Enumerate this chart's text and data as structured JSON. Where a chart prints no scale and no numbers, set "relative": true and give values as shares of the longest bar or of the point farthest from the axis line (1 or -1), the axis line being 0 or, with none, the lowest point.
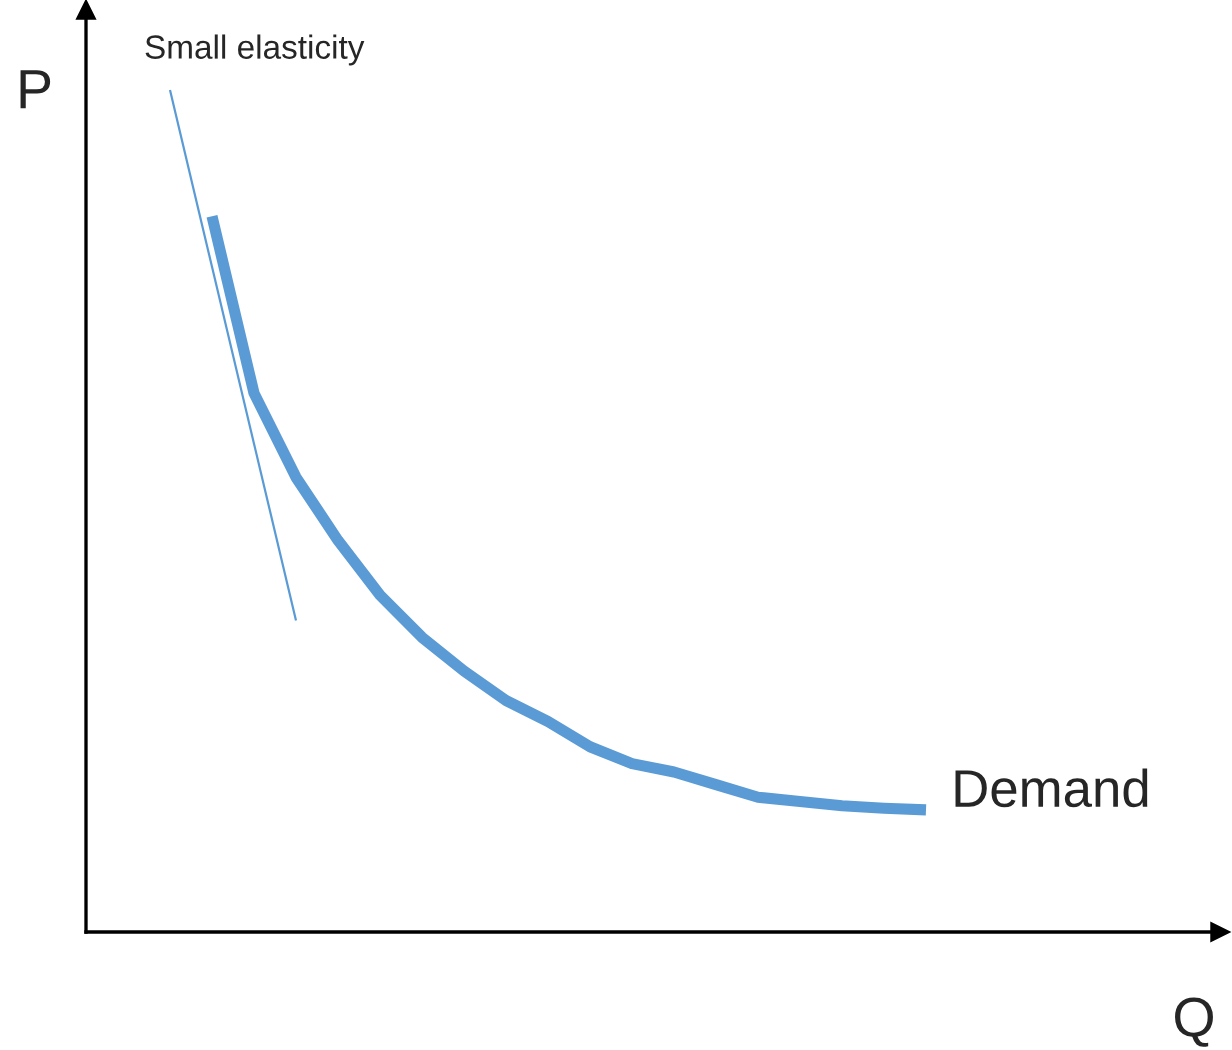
{
  "chart_data": {
    "type": "line",
    "relative": true,
    "xlabel": "Q",
    "ylabel": "P",
    "categories": [
      null,
      null,
      null,
      null,
      null,
      null,
      null,
      null,
      null,
      null,
      null,
      null,
      null,
      null,
      null,
      null,
      null,
      null,
      null,
      null,
      null
    ],
    "annotations": [
      "Small elasticity"
    ],
    "series": [
      {
        "name": "Demand",
        "color": "#5b9bd5",
        "values": [
          null,
          null,
          null,
          0.85,
          0.64,
          0.54,
          0.465,
          0.4,
          0.35,
          0.31,
          0.275,
          0.25,
          0.22,
          0.2,
          0.19,
          0.175,
          0.16,
          0.155,
          0.15,
          0.147,
          0.145
        ]
      },
      {
        "color": "#5b9bd5",
        "values": [
          null,
          null,
          1.0,
          0.79,
          0.58,
          0.37,
          null,
          null,
          null,
          null,
          null,
          null,
          null,
          null,
          null,
          null,
          null,
          null,
          null,
          null,
          null
        ]
      }
    ]
  }
}
